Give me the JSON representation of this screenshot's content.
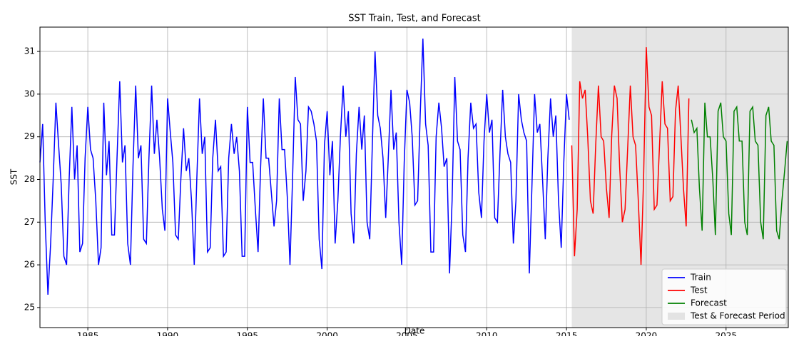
{
  "chart_data": {
    "type": "line",
    "title": "SST Train, Test, and Forecast",
    "x_label": "Date",
    "y_label": "SST",
    "xlim": [
      1982,
      2028.9
    ],
    "ylim": [
      24.53,
      31.57
    ],
    "xticks": [
      1985,
      1990,
      1995,
      2000,
      2005,
      2010,
      2015,
      2020,
      2025
    ],
    "yticks": [
      25,
      26,
      27,
      28,
      29,
      30,
      31
    ],
    "grid": true,
    "legend": "lower right",
    "span": {
      "name": "Test & Forecast Period",
      "color": "#d3d3d3",
      "x": [
        2015.33,
        2028.9
      ]
    },
    "series": [
      {
        "name": "Train",
        "color": "#0000ff",
        "x": [
          1982,
          1982.17,
          1982.33,
          1982.5,
          1982.67,
          1982.83,
          1983,
          1983.17,
          1983.33,
          1983.5,
          1983.67,
          1983.83,
          1984,
          1984.17,
          1984.33,
          1984.5,
          1984.67,
          1984.83,
          1985,
          1985.17,
          1985.33,
          1985.5,
          1985.67,
          1985.83,
          1986,
          1986.17,
          1986.33,
          1986.5,
          1986.67,
          1986.83,
          1987,
          1987.17,
          1987.33,
          1987.5,
          1987.67,
          1987.83,
          1988,
          1988.17,
          1988.33,
          1988.5,
          1988.67,
          1988.83,
          1989,
          1989.17,
          1989.33,
          1989.5,
          1989.67,
          1989.83,
          1990,
          1990.17,
          1990.33,
          1990.5,
          1990.67,
          1990.83,
          1991,
          1991.17,
          1991.33,
          1991.5,
          1991.67,
          1991.83,
          1992,
          1992.17,
          1992.33,
          1992.5,
          1992.67,
          1992.83,
          1993,
          1993.17,
          1993.33,
          1993.5,
          1993.67,
          1993.83,
          1994,
          1994.17,
          1994.33,
          1994.5,
          1994.67,
          1994.83,
          1995,
          1995.17,
          1995.33,
          1995.5,
          1995.67,
          1995.83,
          1996,
          1996.17,
          1996.33,
          1996.5,
          1996.67,
          1996.83,
          1997,
          1997.17,
          1997.33,
          1997.5,
          1997.67,
          1997.83,
          1998,
          1998.17,
          1998.33,
          1998.5,
          1998.67,
          1998.83,
          1999,
          1999.17,
          1999.33,
          1999.5,
          1999.67,
          1999.83,
          2000,
          2000.17,
          2000.33,
          2000.5,
          2000.67,
          2000.83,
          2001,
          2001.17,
          2001.33,
          2001.5,
          2001.67,
          2001.83,
          2002,
          2002.17,
          2002.33,
          2002.5,
          2002.67,
          2002.83,
          2003,
          2003.17,
          2003.33,
          2003.5,
          2003.67,
          2003.83,
          2004,
          2004.17,
          2004.33,
          2004.5,
          2004.67,
          2004.83,
          2005,
          2005.17,
          2005.33,
          2005.5,
          2005.67,
          2005.83,
          2006,
          2006.17,
          2006.33,
          2006.5,
          2006.67,
          2006.83,
          2007,
          2007.17,
          2007.33,
          2007.5,
          2007.67,
          2007.83,
          2008,
          2008.17,
          2008.33,
          2008.5,
          2008.67,
          2008.83,
          2009,
          2009.17,
          2009.33,
          2009.5,
          2009.67,
          2009.83,
          2010,
          2010.17,
          2010.33,
          2010.5,
          2010.67,
          2010.83,
          2011,
          2011.17,
          2011.33,
          2011.5,
          2011.67,
          2011.83,
          2012,
          2012.17,
          2012.33,
          2012.5,
          2012.67,
          2012.83,
          2013,
          2013.17,
          2013.33,
          2013.5,
          2013.67,
          2013.83,
          2014,
          2014.17,
          2014.33,
          2014.5,
          2014.67,
          2014.83,
          2015,
          2015.17
        ],
        "values": [
          28.4,
          29.3,
          27.0,
          25.3,
          26.5,
          28.0,
          29.8,
          28.8,
          27.9,
          26.2,
          26.0,
          28.0,
          29.7,
          28.0,
          28.8,
          26.3,
          26.5,
          28.5,
          29.7,
          28.7,
          28.5,
          27.5,
          26.0,
          26.4,
          29.8,
          28.1,
          28.9,
          26.7,
          26.7,
          28.5,
          30.3,
          28.4,
          28.8,
          26.5,
          26.0,
          28.3,
          30.2,
          28.5,
          28.8,
          26.6,
          26.5,
          28.5,
          30.2,
          28.6,
          29.4,
          28.5,
          27.3,
          26.8,
          29.9,
          29.1,
          28.4,
          26.7,
          26.6,
          28.0,
          29.2,
          28.2,
          28.5,
          27.5,
          26.0,
          28.0,
          29.9,
          28.6,
          29.0,
          26.3,
          26.4,
          28.5,
          29.4,
          28.2,
          28.3,
          26.2,
          26.3,
          28.5,
          29.3,
          28.6,
          29.0,
          28.2,
          26.2,
          26.2,
          29.7,
          28.4,
          28.4,
          27.3,
          26.3,
          28.3,
          29.9,
          28.5,
          28.5,
          27.7,
          26.9,
          27.5,
          29.9,
          28.7,
          28.7,
          27.6,
          26.0,
          28.0,
          30.4,
          29.4,
          29.3,
          27.5,
          28.2,
          29.7,
          29.6,
          29.3,
          28.9,
          26.6,
          25.9,
          28.8,
          29.6,
          28.1,
          28.9,
          26.5,
          27.5,
          29.0,
          30.2,
          29.0,
          29.6,
          27.2,
          26.5,
          28.6,
          29.7,
          28.7,
          29.5,
          27.0,
          26.6,
          28.8,
          31.0,
          29.5,
          29.2,
          28.5,
          27.1,
          28.5,
          30.1,
          28.7,
          29.1,
          27.0,
          26.0,
          28.4,
          30.1,
          29.8,
          29.0,
          27.4,
          27.5,
          29.5,
          31.3,
          29.3,
          28.8,
          26.3,
          26.3,
          29.0,
          29.8,
          29.2,
          28.3,
          28.5,
          25.8,
          27.5,
          30.4,
          28.9,
          28.7,
          26.7,
          26.3,
          28.5,
          29.8,
          29.2,
          29.3,
          27.7,
          27.1,
          28.9,
          30.0,
          29.1,
          29.4,
          27.1,
          27.0,
          28.6,
          30.1,
          29.0,
          28.6,
          28.4,
          26.5,
          27.5,
          30.0,
          29.4,
          29.1,
          28.9,
          25.8,
          27.8,
          30.0,
          29.1,
          29.3,
          28.0,
          26.6,
          28.5,
          29.9,
          29.0,
          29.5,
          27.5,
          26.4,
          28.4,
          30.0,
          29.4
        ]
      },
      {
        "name": "Test",
        "color": "#ff0000",
        "x": [
          2015.33,
          2015.5,
          2015.67,
          2015.83,
          2016,
          2016.17,
          2016.33,
          2016.5,
          2016.67,
          2016.83,
          2017,
          2017.17,
          2017.33,
          2017.5,
          2017.67,
          2017.83,
          2018,
          2018.17,
          2018.33,
          2018.5,
          2018.67,
          2018.83,
          2019,
          2019.17,
          2019.33,
          2019.5,
          2019.67,
          2019.83,
          2020,
          2020.17,
          2020.33,
          2020.5,
          2020.67,
          2020.83,
          2021,
          2021.17,
          2021.33,
          2021.5,
          2021.67,
          2021.83,
          2022,
          2022.17,
          2022.33,
          2022.5,
          2022.67
        ],
        "values": [
          28.8,
          26.2,
          27.3,
          30.3,
          29.9,
          30.1,
          29.0,
          27.5,
          27.2,
          28.8,
          30.2,
          29.0,
          28.9,
          27.8,
          27.1,
          29.0,
          30.2,
          29.9,
          28.3,
          27.0,
          27.3,
          28.7,
          30.2,
          29.0,
          28.8,
          27.5,
          26.0,
          28.0,
          31.1,
          29.7,
          29.5,
          27.3,
          27.4,
          28.8,
          30.3,
          29.3,
          29.2,
          27.5,
          27.6,
          29.6,
          30.2,
          29.0,
          27.8,
          26.9,
          29.9
        ]
      },
      {
        "name": "Forecast",
        "color": "#008000",
        "x": [
          2022.83,
          2023,
          2023.17,
          2023.33,
          2023.5,
          2023.67,
          2023.83,
          2024,
          2024.17,
          2024.33,
          2024.5,
          2024.67,
          2024.83,
          2025,
          2025.17,
          2025.33,
          2025.5,
          2025.67,
          2025.83,
          2026,
          2026.17,
          2026.33,
          2026.5,
          2026.67,
          2026.83,
          2027,
          2027.17,
          2027.33,
          2027.5,
          2027.67,
          2027.83,
          2028,
          2028.17,
          2028.33,
          2028.5,
          2028.67,
          2028.83
        ],
        "values": [
          29.4,
          29.1,
          29.2,
          27.8,
          26.8,
          29.8,
          29.0,
          29.0,
          28.0,
          26.7,
          29.6,
          29.8,
          29.0,
          28.9,
          27.2,
          26.7,
          29.6,
          29.7,
          28.9,
          28.9,
          27.0,
          26.7,
          29.6,
          29.7,
          28.9,
          28.8,
          27.0,
          26.6,
          29.5,
          29.7,
          28.9,
          28.8,
          26.8,
          26.6,
          27.5,
          28.2,
          28.9
        ]
      }
    ]
  }
}
